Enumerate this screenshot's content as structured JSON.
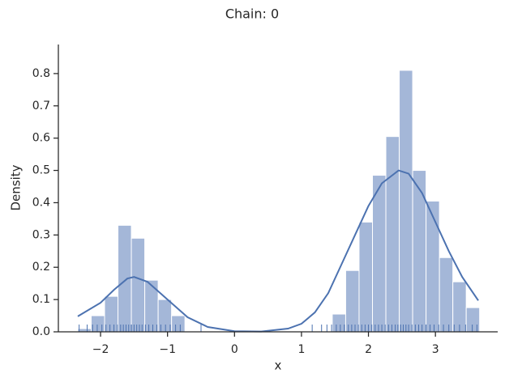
{
  "chart_data": {
    "type": "histogram",
    "title": "Chain: 0",
    "x_label": "x",
    "y_label": "Density",
    "bins": [
      -2.34,
      -2.14,
      -1.94,
      -1.74,
      -1.54,
      -1.34,
      -1.14,
      -0.94,
      -0.74,
      -0.54,
      -0.34,
      -0.14,
      0.06,
      0.26,
      0.46,
      0.66,
      0.86,
      1.06,
      1.26,
      1.46,
      1.66,
      1.86,
      2.06,
      2.26,
      2.46,
      2.66,
      2.86,
      3.06,
      3.26,
      3.46,
      3.66
    ],
    "values": [
      0.01,
      0.05,
      0.11,
      0.33,
      0.29,
      0.16,
      0.1,
      0.05,
      0,
      0,
      0,
      0,
      0,
      0,
      0,
      0,
      0,
      0,
      0,
      0.055,
      0.19,
      0.34,
      0.485,
      0.605,
      0.81,
      0.5,
      0.405,
      0.23,
      0.155,
      0.075
    ],
    "color": "#a4b7d8",
    "kde": {
      "color": "#4c72b0",
      "x": [
        -2.34,
        -2.0,
        -1.8,
        -1.6,
        -1.5,
        -1.3,
        -1.0,
        -0.7,
        -0.4,
        0,
        0.4,
        0.8,
        1.0,
        1.2,
        1.4,
        1.6,
        1.8,
        2.0,
        2.2,
        2.45,
        2.6,
        2.8,
        3.0,
        3.2,
        3.4,
        3.64
      ],
      "values": [
        0.048,
        0.09,
        0.13,
        0.165,
        0.17,
        0.155,
        0.1,
        0.045,
        0.015,
        0.002,
        0.001,
        0.01,
        0.025,
        0.06,
        0.12,
        0.21,
        0.3,
        0.39,
        0.46,
        0.5,
        0.49,
        0.43,
        0.34,
        0.25,
        0.17,
        0.097
      ]
    },
    "rug": {
      "color": "#4c72b0",
      "x": [
        -2.32,
        -2.2,
        -2.12,
        -2.05,
        -1.98,
        -1.92,
        -1.86,
        -1.8,
        -1.75,
        -1.7,
        -1.66,
        -1.62,
        -1.58,
        -1.54,
        -1.5,
        -1.46,
        -1.42,
        -1.38,
        -1.33,
        -1.28,
        -1.22,
        -1.16,
        -1.1,
        -1.03,
        -0.96,
        -0.88,
        -0.81,
        -0.5,
        1.16,
        1.3,
        1.38,
        1.45,
        1.52,
        1.58,
        1.64,
        1.7,
        1.75,
        1.8,
        1.85,
        1.9,
        1.95,
        2.0,
        2.05,
        2.1,
        2.15,
        2.2,
        2.25,
        2.3,
        2.35,
        2.4,
        2.44,
        2.48,
        2.52,
        2.56,
        2.6,
        2.65,
        2.7,
        2.75,
        2.8,
        2.86,
        2.92,
        2.98,
        3.05,
        3.12,
        3.2,
        3.28,
        3.36,
        3.45,
        3.55,
        3.62
      ]
    },
    "xlim": [
      -2.63,
      3.93
    ],
    "ylim": [
      0,
      0.89
    ],
    "xticks": [
      {
        "value": -2,
        "label": "−2"
      },
      {
        "value": -1,
        "label": "−1"
      },
      0,
      1,
      2,
      3
    ],
    "yticks": [
      {
        "value": 0,
        "label": "0.0"
      },
      0.1,
      0.2,
      0.3,
      0.4,
      0.5,
      0.6,
      0.7,
      0.8
    ]
  }
}
